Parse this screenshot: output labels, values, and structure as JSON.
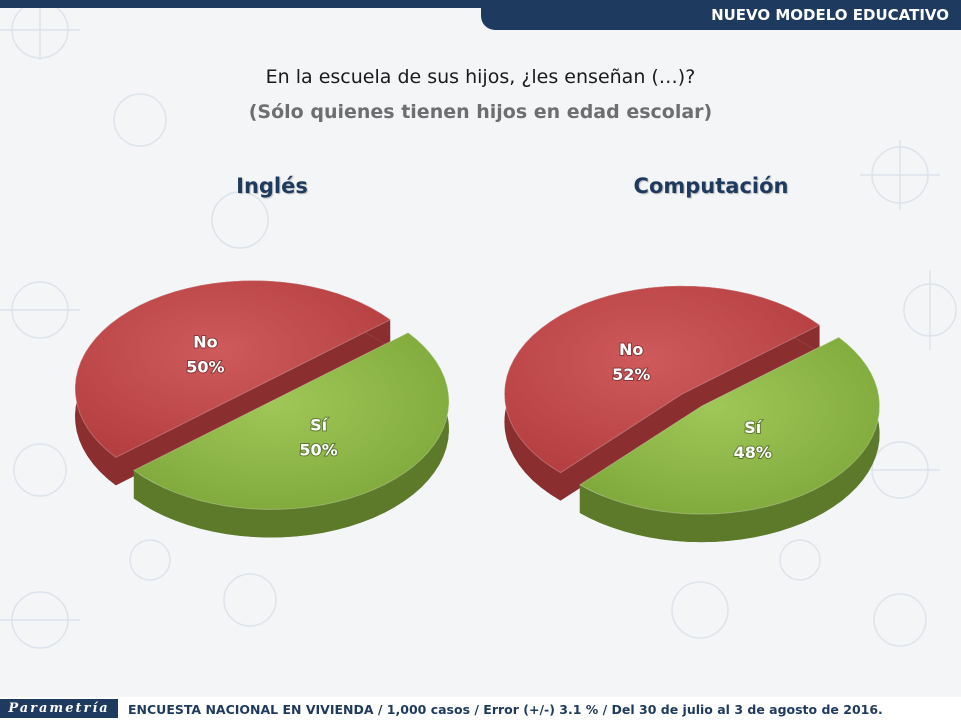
{
  "header": {
    "label": "NUEVO MODELO EDUCATIVO"
  },
  "question": "En la escuela de sus hijos, ¿les enseñan (…)?",
  "subtitle": "(Sólo quienes tienen hijos en edad escolar)",
  "colors": {
    "no": "#c0494b",
    "si": "#8db645",
    "brand": "#1f3a5f"
  },
  "chart_data": [
    {
      "type": "pie",
      "title": "Inglés",
      "slices": [
        {
          "label": "No",
          "value": 50,
          "display": "50%"
        },
        {
          "label": "Sí",
          "value": 50,
          "display": "50%"
        }
      ]
    },
    {
      "type": "pie",
      "title": "Computación",
      "slices": [
        {
          "label": "No",
          "value": 52,
          "display": "52%"
        },
        {
          "label": "Sí",
          "value": 48,
          "display": "48%"
        }
      ]
    }
  ],
  "footer": {
    "logo": "Parametría",
    "text": "ENCUESTA NACIONAL EN VIVIENDA / 1,000 casos / Error (+/-) 3.1 % / Del 30 de julio al 3 de agosto de 2016."
  }
}
